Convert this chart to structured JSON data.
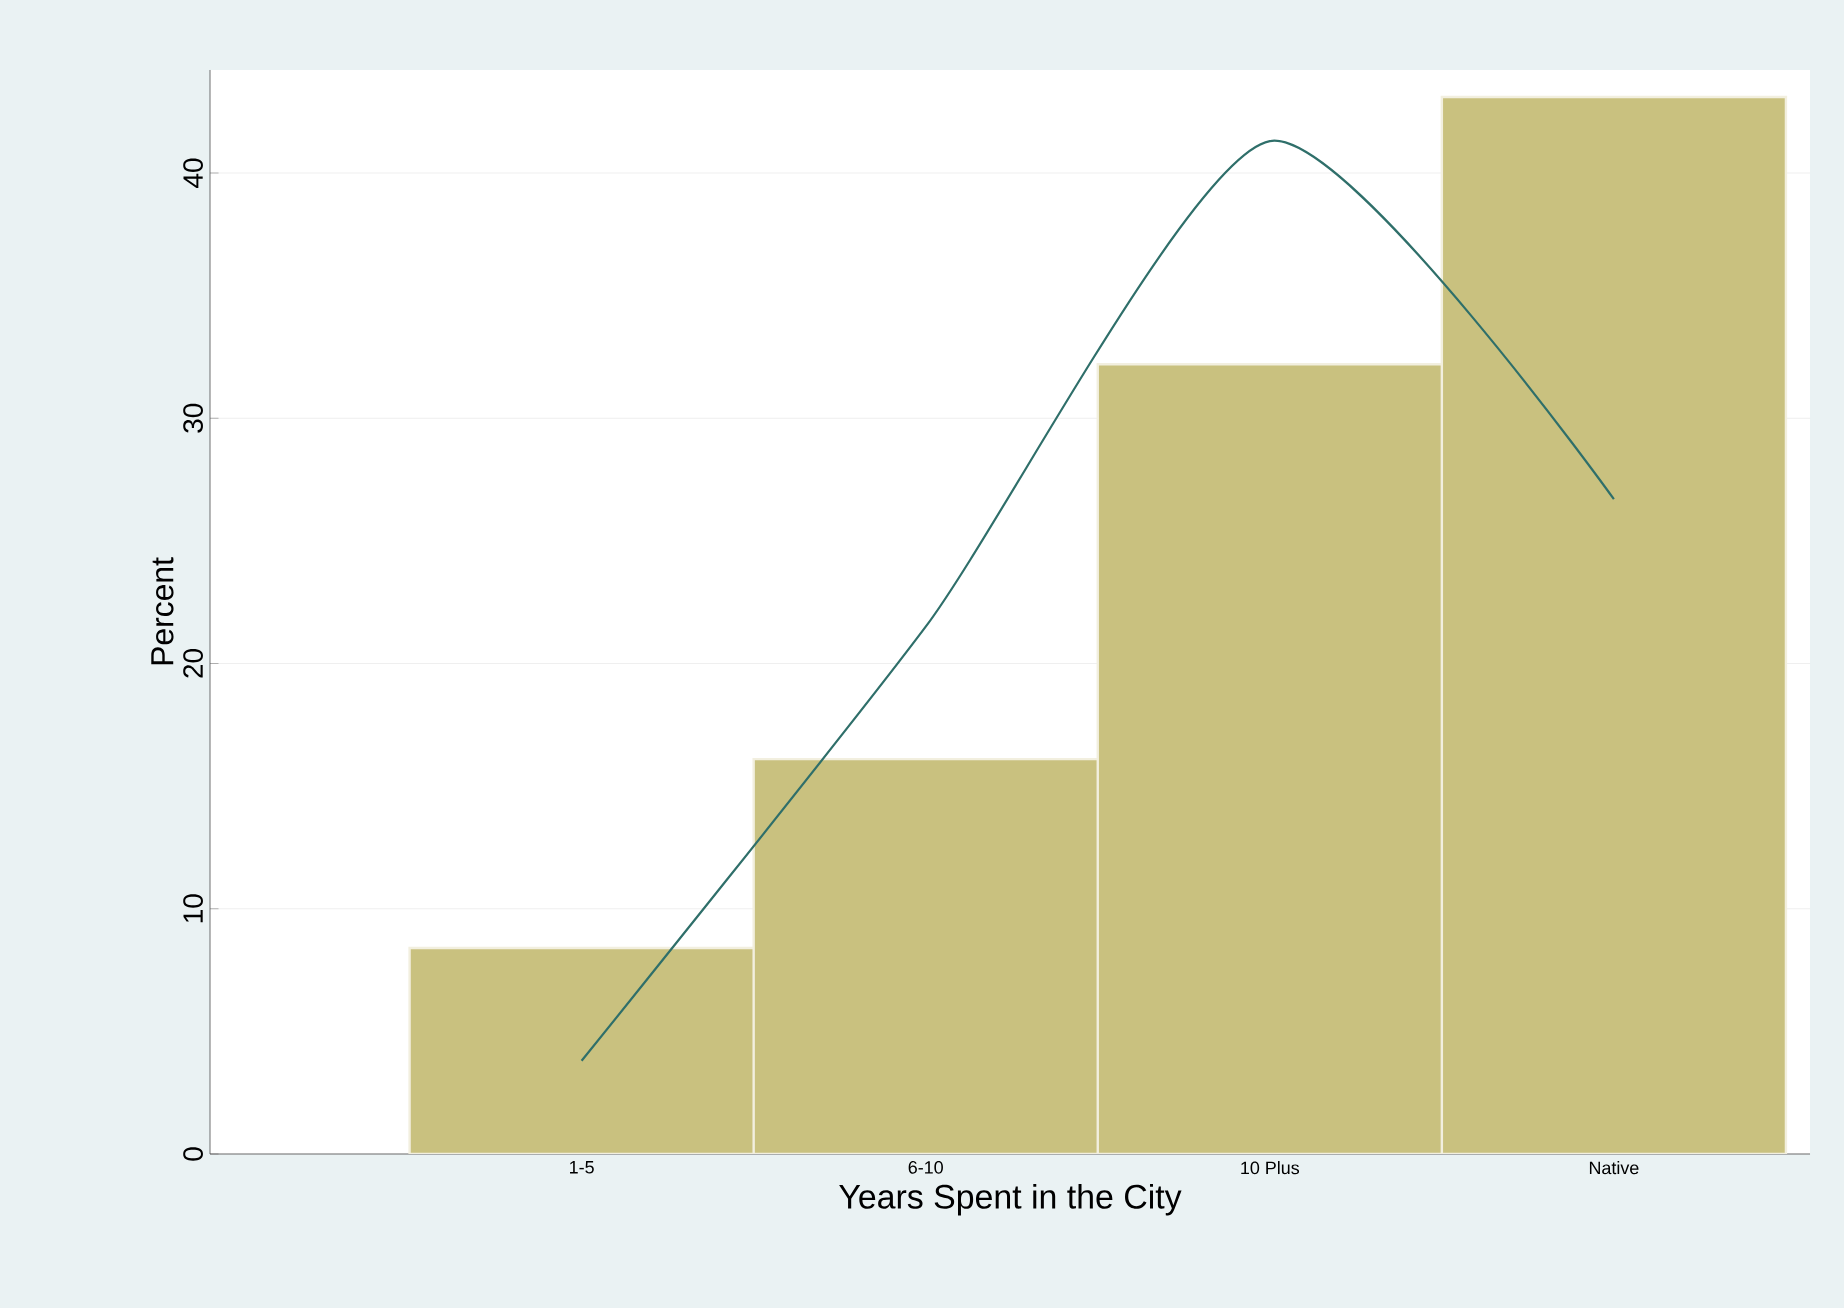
{
  "chart_data": {
    "type": "bar",
    "xlabel": "Years Spent in the City",
    "ylabel": "Percent",
    "categories": [
      "1-5",
      "6-10",
      "10 Plus",
      "Native"
    ],
    "series": [
      {
        "color": "#c9c17f",
        "values": [
          8.4,
          16.1,
          32.2,
          43.1
        ]
      },
      {
        "type": "line",
        "color": "#2f6f6a",
        "values": [
          3.8,
          21.5,
          41.3,
          26.7
        ]
      }
    ],
    "ylim": [
      0,
      44.2
    ],
    "yticks": [
      0,
      10,
      20,
      30,
      40
    ],
    "grid": "y"
  }
}
